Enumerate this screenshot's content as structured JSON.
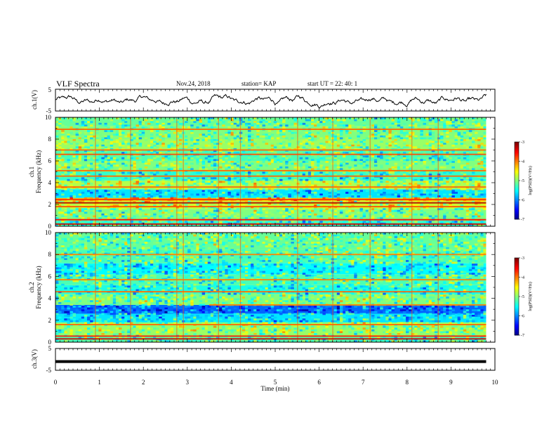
{
  "header": {
    "title": "VLF Spectra",
    "date": "Nov.24, 2018",
    "station": "station= KAP",
    "start": "start  UT =   22: 40: 1"
  },
  "chart_data": [
    {
      "panel": "ch1-waveform",
      "type": "line",
      "ylabel": "ch.1(V)",
      "ylim": [
        -5,
        5
      ],
      "yticks": [
        "5",
        "-5"
      ],
      "xlim": [
        0,
        10
      ],
      "trace_end_min": 9.8,
      "mean": -0.3,
      "amplitude": 2.5
    },
    {
      "panel": "ch1-spectrogram",
      "type": "heatmap",
      "ylabel": "ch.1\nFrequency (kHz)",
      "ylim": [
        0,
        10
      ],
      "yticks": [
        "0",
        "2",
        "4",
        "6",
        "8",
        "10"
      ],
      "xlim": [
        0,
        10
      ],
      "data_end_min": 9.8,
      "colorbar": {
        "label": "log(PSD)(V²/Hz)",
        "range": [
          -7,
          -3
        ],
        "ticks": [
          "-3",
          "-4",
          "-5",
          "-6",
          "-7"
        ]
      },
      "bands": [
        {
          "f1": 0.0,
          "f2": 0.5,
          "level": -5.3
        },
        {
          "f1": 0.5,
          "f2": 1.6,
          "level": -5.0
        },
        {
          "f1": 1.6,
          "f2": 2.3,
          "level": -4.7
        },
        {
          "f1": 2.3,
          "f2": 2.6,
          "level": -4.2
        },
        {
          "f1": 2.6,
          "f2": 3.4,
          "level": -5.6
        },
        {
          "f1": 3.4,
          "f2": 4.2,
          "level": -4.8
        },
        {
          "f1": 4.2,
          "f2": 5.0,
          "level": -5.3
        },
        {
          "f1": 5.0,
          "f2": 6.0,
          "level": -5.0
        },
        {
          "f1": 6.0,
          "f2": 7.0,
          "level": -5.2
        },
        {
          "f1": 7.0,
          "f2": 8.0,
          "level": -4.9
        },
        {
          "f1": 8.0,
          "f2": 9.2,
          "level": -5.0
        },
        {
          "f1": 9.2,
          "f2": 10.0,
          "level": -5.1
        }
      ],
      "lines": [
        {
          "f": 0.2,
          "level": -3.3
        },
        {
          "f": 0.6,
          "level": -3.5
        },
        {
          "f": 1.8,
          "level": -3.8
        },
        {
          "f": 2.15,
          "level": -3.2
        },
        {
          "f": 2.45,
          "level": -3.7
        },
        {
          "f": 3.6,
          "level": -3.9
        },
        {
          "f": 4.6,
          "level": -3.9
        },
        {
          "f": 5.1,
          "level": -3.9
        },
        {
          "f": 6.6,
          "level": -3.8
        },
        {
          "f": 7.0,
          "level": -3.9
        },
        {
          "f": 8.9,
          "level": -3.9
        }
      ]
    },
    {
      "panel": "ch2-spectrogram",
      "type": "heatmap",
      "ylabel": "ch.2\nFrequency (kHz)",
      "ylim": [
        0,
        10
      ],
      "yticks": [
        "0",
        "2",
        "4",
        "6",
        "8",
        "10"
      ],
      "xlim": [
        0,
        10
      ],
      "data_end_min": 9.8,
      "colorbar": {
        "label": "log(PSD)(V²/Hz)",
        "range": [
          -7,
          -3
        ],
        "ticks": [
          "-3",
          "-4",
          "-5",
          "-6",
          "-7"
        ]
      },
      "bands": [
        {
          "f1": 0.0,
          "f2": 0.6,
          "level": -5.2
        },
        {
          "f1": 0.6,
          "f2": 1.8,
          "level": -4.9
        },
        {
          "f1": 1.8,
          "f2": 2.6,
          "level": -5.6
        },
        {
          "f1": 2.6,
          "f2": 3.4,
          "level": -6.1
        },
        {
          "f1": 3.4,
          "f2": 4.4,
          "level": -5.0
        },
        {
          "f1": 4.4,
          "f2": 5.2,
          "level": -5.4
        },
        {
          "f1": 5.2,
          "f2": 6.2,
          "level": -5.2
        },
        {
          "f1": 6.2,
          "f2": 7.2,
          "level": -5.5
        },
        {
          "f1": 7.2,
          "f2": 8.4,
          "level": -5.2
        },
        {
          "f1": 8.4,
          "f2": 10.0,
          "level": -5.1
        }
      ],
      "lines": [
        {
          "f": 0.3,
          "level": -3.3
        },
        {
          "f": 0.55,
          "level": -3.6
        },
        {
          "f": 1.6,
          "level": -3.9
        },
        {
          "f": 3.4,
          "level": -4.0,
          "t_start": 3.5
        },
        {
          "f": 4.6,
          "level": -3.9
        },
        {
          "f": 5.7,
          "level": -4.0
        },
        {
          "f": 8.0,
          "level": -4.0
        }
      ]
    },
    {
      "panel": "ch3-waveform",
      "type": "line",
      "ylabel": "ch.3(V)",
      "ylim": [
        -5,
        5
      ],
      "yticks": [
        "5",
        "-5"
      ],
      "xlim": [
        0,
        10
      ],
      "trace_end_min": 9.8,
      "mean": -1.0,
      "amplitude": 0.0
    }
  ],
  "xaxis": {
    "label": "Time (min)",
    "ticks": [
      "0",
      "1",
      "2",
      "3",
      "4",
      "5",
      "6",
      "7",
      "8",
      "9",
      "10"
    ]
  },
  "vertical_events_min": [
    0.9,
    1.7,
    2.75,
    2.9,
    3.7,
    4.2,
    5.5,
    6.3,
    7.15,
    8.1,
    8.7
  ],
  "colors": {
    "axis": "#000000",
    "trace": "#000000",
    "background": "#ffffff"
  }
}
